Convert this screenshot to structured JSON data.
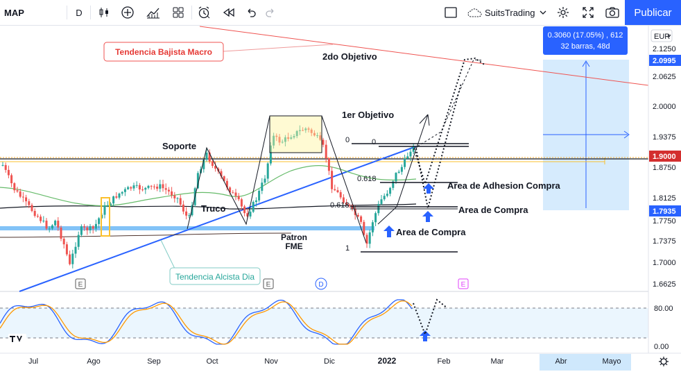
{
  "toolbar": {
    "symbol": "MAP",
    "interval": "D",
    "brand": "SuitsTrading",
    "publish_label": "Publicar",
    "icons": [
      "candles-icon",
      "add-indicator-icon",
      "indicators-icon",
      "layouts-icon",
      "alert-icon",
      "replay-icon",
      "undo-icon",
      "redo-icon",
      "layout-icon",
      "cloud-icon",
      "settings-icon",
      "fullscreen-icon",
      "snapshot-icon"
    ]
  },
  "price_axis": {
    "currency": "EUR",
    "ticks": [
      "2.1250",
      "2.0625",
      "2.0000",
      "1.9375",
      "1.8750",
      "1.8125",
      "1.7750",
      "1.7375",
      "1.7000",
      "1.6625"
    ],
    "price_labels": [
      {
        "text": "2.0995",
        "color": "#2962ff"
      },
      {
        "text": "1.9000",
        "color": "#d32f2f"
      },
      {
        "text": "1.7935",
        "color": "#2962ff"
      }
    ]
  },
  "oscillator_axis": {
    "ticks": [
      "80.00",
      "0.00"
    ]
  },
  "time_axis": {
    "ticks": [
      "Jul",
      "Ago",
      "Sep",
      "Oct",
      "Nov",
      "Dic",
      "2022",
      "Feb",
      "Mar",
      "Abr",
      "Mayo"
    ]
  },
  "measure_box": {
    "line1": "0.3060 (17.05%) , 612",
    "line2": "32 barras, 48d"
  },
  "annotations": {
    "bear_trend": "Tendencia Bajista Macro",
    "bull_trend": "Tendencia Alcista Dia",
    "target2": "2do Objetivo",
    "target1": "1er Objetivo",
    "support": "Soporte",
    "trick": "Truco",
    "pattern_l1": "Patron",
    "pattern_l2": "FME",
    "adhesion": "Area de Adhesion Compra",
    "buy_zone": "Area de Compra",
    "buy_zone_2": "Area de Compra",
    "fib_zero_a": "0",
    "fib_zero_b": "0",
    "fib_618_a": "0.618",
    "fib_618_b": "0.618",
    "fib_one": "1"
  },
  "event_markers": [
    {
      "label": "E",
      "color": "#555555"
    },
    {
      "label": "E",
      "color": "#555555"
    },
    {
      "label": "D",
      "color": "#2962ff"
    },
    {
      "label": "E",
      "color": "#e040fb"
    }
  ],
  "colors": {
    "up": "#26a69a",
    "down": "#ef5350",
    "accent": "#2962ff",
    "bear_line": "#ef5350"
  }
}
